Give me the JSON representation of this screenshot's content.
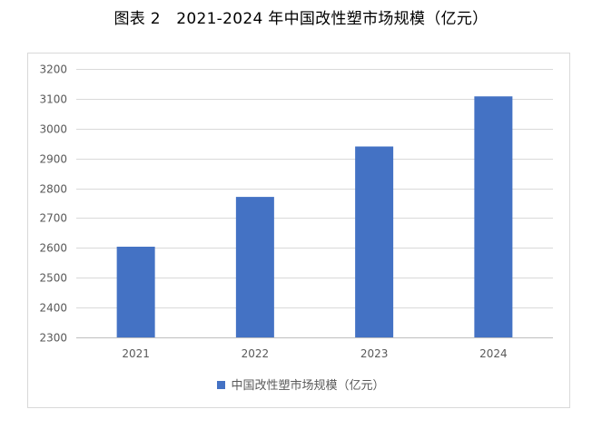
{
  "page": {
    "title": "图表 2　2021-2024 年中国改性塑市场规模（亿元）"
  },
  "colors": {
    "bar": "#4472c4",
    "grid": "#d9d9d9",
    "axis": "#bfbfbf",
    "text": "#595959"
  },
  "chart_data": {
    "type": "bar",
    "title": "",
    "xlabel": "",
    "ylabel": "",
    "categories": [
      "2021",
      "2022",
      "2023",
      "2024"
    ],
    "series": [
      {
        "name": "中国改性塑市场规模（亿元）",
        "values": [
          2604,
          2771,
          2940,
          3108
        ]
      }
    ],
    "ylim": [
      2300,
      3200
    ],
    "yticks": [
      2300,
      2400,
      2500,
      2600,
      2700,
      2800,
      2900,
      3000,
      3100,
      3200
    ],
    "grid": true,
    "legend_position": "bottom"
  }
}
